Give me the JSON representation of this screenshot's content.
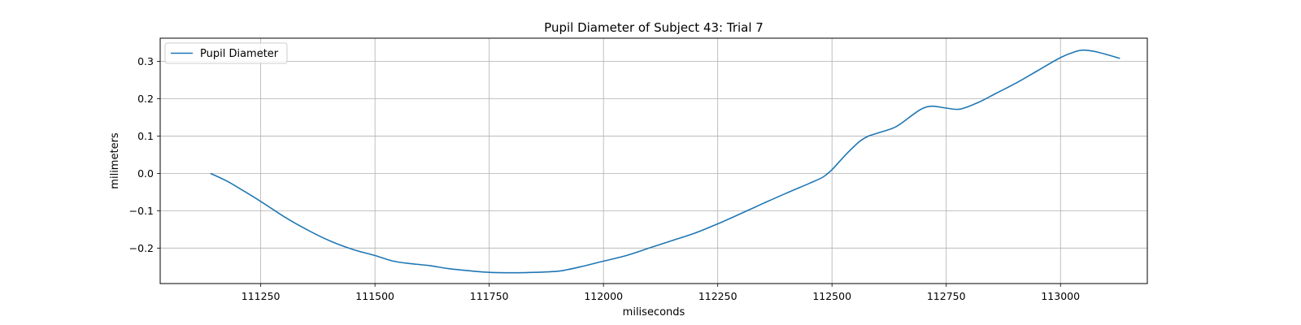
{
  "chart_data": {
    "type": "line",
    "title": "Pupil Diameter of Subject 43: Trial 7",
    "xlabel": "miliseconds",
    "ylabel": "milimeters",
    "xlim": [
      111030,
      113190
    ],
    "ylim": [
      -0.295,
      0.362
    ],
    "xticks": [
      111250,
      111500,
      111750,
      112000,
      112250,
      112500,
      112750,
      113000
    ],
    "xtick_labels": [
      "111250",
      "111500",
      "111750",
      "112000",
      "112250",
      "112500",
      "112750",
      "113000"
    ],
    "yticks": [
      -0.2,
      -0.1,
      0.0,
      0.1,
      0.2,
      0.3
    ],
    "ytick_labels": [
      "−0.2",
      "−0.1",
      "0.0",
      "0.1",
      "0.2",
      "0.3"
    ],
    "grid": true,
    "legend_position": "top-left",
    "series": [
      {
        "name": "Pupil Diameter",
        "color": "#1f77b4",
        "x": [
          111140,
          111175,
          111210,
          111250,
          111300,
          111350,
          111400,
          111450,
          111500,
          111540,
          111580,
          111620,
          111660,
          111700,
          111750,
          111800,
          111850,
          111900,
          111920,
          111950,
          112000,
          112050,
          112100,
          112150,
          112200,
          112250,
          112300,
          112350,
          112400,
          112450,
          112480,
          112500,
          112530,
          112560,
          112580,
          112600,
          112640,
          112680,
          112700,
          112720,
          112750,
          112780,
          112820,
          112860,
          112900,
          112950,
          113000,
          113030,
          113050,
          113080,
          113130
        ],
        "y": [
          0.0,
          -0.02,
          -0.045,
          -0.075,
          -0.115,
          -0.15,
          -0.18,
          -0.203,
          -0.22,
          -0.235,
          -0.242,
          -0.247,
          -0.255,
          -0.26,
          -0.265,
          -0.266,
          -0.265,
          -0.262,
          -0.258,
          -0.25,
          -0.235,
          -0.22,
          -0.2,
          -0.18,
          -0.16,
          -0.135,
          -0.108,
          -0.08,
          -0.053,
          -0.027,
          -0.01,
          0.01,
          0.05,
          0.085,
          0.1,
          0.108,
          0.125,
          0.16,
          0.175,
          0.18,
          0.175,
          0.172,
          0.19,
          0.215,
          0.24,
          0.275,
          0.31,
          0.325,
          0.33,
          0.325,
          0.308
        ]
      }
    ]
  }
}
